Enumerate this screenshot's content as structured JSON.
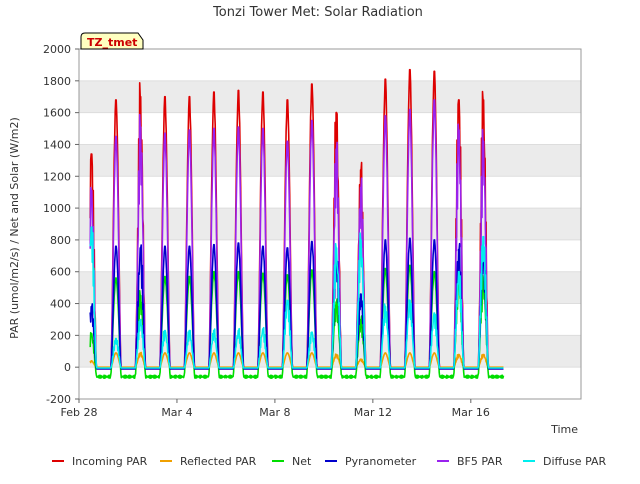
{
  "chart_data": {
    "type": "line",
    "title": "Tonzi Tower Met: Solar Radiation",
    "xlabel": "Time",
    "ylabel": "PAR (umol/m2/s) / Net and Solar (W/m2)",
    "ylim": [
      -200,
      2000
    ],
    "yticks": [
      -200,
      0,
      200,
      400,
      600,
      800,
      1000,
      1200,
      1400,
      1600,
      1800,
      2000
    ],
    "xlim_days": [
      0,
      20.5
    ],
    "xticks": [
      {
        "day": 0,
        "label": "Feb 28"
      },
      {
        "day": 4,
        "label": "Mar 4"
      },
      {
        "day": 8,
        "label": "Mar 8"
      },
      {
        "day": 12,
        "label": "Mar 12"
      },
      {
        "day": 16,
        "label": "Mar 16"
      }
    ],
    "site_label": "TZ_tmet",
    "legend_position": "bottom",
    "grid": "horizontal alternating bands",
    "days_shown": 18,
    "daily_peaks": [
      {
        "day": 0,
        "incoming": 1340,
        "bf5": 1110,
        "pyranometer": 380,
        "net": 210,
        "reflected": 40,
        "diffuse": 880
      },
      {
        "day": 1,
        "incoming": 1680,
        "bf5": 1450,
        "pyranometer": 760,
        "net": 560,
        "reflected": 90,
        "diffuse": 180
      },
      {
        "day": 2,
        "incoming": 1700,
        "bf5": 1510,
        "pyranometer": 750,
        "net": 450,
        "reflected": 90,
        "diffuse": 300
      },
      {
        "day": 3,
        "incoming": 1700,
        "bf5": 1470,
        "pyranometer": 760,
        "net": 570,
        "reflected": 90,
        "diffuse": 230
      },
      {
        "day": 4,
        "incoming": 1700,
        "bf5": 1490,
        "pyranometer": 760,
        "net": 570,
        "reflected": 90,
        "diffuse": 230
      },
      {
        "day": 5,
        "incoming": 1730,
        "bf5": 1500,
        "pyranometer": 770,
        "net": 600,
        "reflected": 90,
        "diffuse": 230
      },
      {
        "day": 6,
        "incoming": 1740,
        "bf5": 1510,
        "pyranometer": 780,
        "net": 600,
        "reflected": 90,
        "diffuse": 230
      },
      {
        "day": 7,
        "incoming": 1730,
        "bf5": 1500,
        "pyranometer": 760,
        "net": 590,
        "reflected": 90,
        "diffuse": 240
      },
      {
        "day": 8,
        "incoming": 1680,
        "bf5": 1420,
        "pyranometer": 750,
        "net": 580,
        "reflected": 90,
        "diffuse": 420
      },
      {
        "day": 9,
        "incoming": 1780,
        "bf5": 1550,
        "pyranometer": 790,
        "net": 610,
        "reflected": 90,
        "diffuse": 220
      },
      {
        "day": 10,
        "incoming": 1600,
        "bf5": 1370,
        "pyranometer": 700,
        "net": 410,
        "reflected": 80,
        "diffuse": 750
      },
      {
        "day": 11,
        "incoming": 1240,
        "bf5": 1130,
        "pyranometer": 460,
        "net": 300,
        "reflected": 50,
        "diffuse": 800
      },
      {
        "day": 12,
        "incoming": 1810,
        "bf5": 1580,
        "pyranometer": 800,
        "net": 620,
        "reflected": 90,
        "diffuse": 380
      },
      {
        "day": 13,
        "incoming": 1870,
        "bf5": 1620,
        "pyranometer": 810,
        "net": 640,
        "reflected": 90,
        "diffuse": 420
      },
      {
        "day": 14,
        "incoming": 1860,
        "bf5": 1680,
        "pyranometer": 800,
        "net": 600,
        "reflected": 90,
        "diffuse": 340
      },
      {
        "day": 15,
        "incoming": 1680,
        "bf5": 1490,
        "pyranometer": 740,
        "net": 560,
        "reflected": 80,
        "diffuse": 600
      },
      {
        "day": 16,
        "incoming": 1680,
        "bf5": 1420,
        "pyranometer": 720,
        "net": 540,
        "reflected": 80,
        "diffuse": 820
      },
      {
        "day": 17,
        "incoming": 0,
        "bf5": 0,
        "pyranometer": 0,
        "net": 0,
        "reflected": 0,
        "diffuse": 0
      }
    ],
    "night_values": {
      "incoming": -10,
      "bf5": -10,
      "pyranometer": -10,
      "net": -60,
      "reflected": 0,
      "diffuse": -5
    },
    "series": [
      {
        "key": "incoming",
        "name": "Incoming PAR",
        "color": "#dd0000"
      },
      {
        "key": "reflected",
        "name": "Reflected PAR",
        "color": "#f0a000"
      },
      {
        "key": "net",
        "name": "Net",
        "color": "#00dd00"
      },
      {
        "key": "pyranometer",
        "name": "Pyranometer",
        "color": "#0000cc"
      },
      {
        "key": "bf5",
        "name": "BF5 PAR",
        "color": "#9922ee"
      },
      {
        "key": "diffuse",
        "name": "Diffuse PAR",
        "color": "#00eeee"
      }
    ],
    "draw_order": [
      "incoming",
      "bf5",
      "reflected",
      "net",
      "pyranometer",
      "diffuse"
    ]
  }
}
